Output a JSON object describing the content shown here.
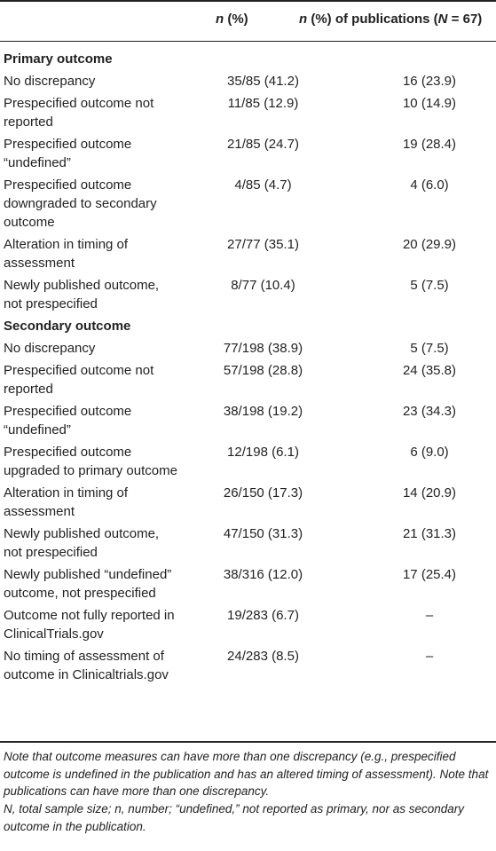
{
  "header": {
    "col1_n": "n",
    "col1_rest": " (%)",
    "col2_n": "n",
    "col2_mid": " (%) of publications (",
    "col2_N": "N",
    "col2_end": " = 67)"
  },
  "sections": [
    {
      "title": "Primary outcome",
      "rows": [
        {
          "label": "No discrepancy",
          "v1": "35/85 (41.2)",
          "v2": "16 (23.9)"
        },
        {
          "label": "Prespecified outcome not reported",
          "v1": "11/85 (12.9)",
          "v2": "10 (14.9)"
        },
        {
          "label": "Prespecified outcome “undefined”",
          "v1": "21/85 (24.7)",
          "v2": "19 (28.4)"
        },
        {
          "label": "Prespecified outcome downgraded to secondary outcome",
          "v1": "4/85 (4.7)",
          "v2": "4 (6.0)"
        },
        {
          "label": "Alteration in timing of assessment",
          "v1": "27/77 (35.1)",
          "v2": "20 (29.9)"
        },
        {
          "label": "Newly published outcome, not prespecified",
          "v1": "8/77 (10.4)",
          "v2": "5 (7.5)"
        }
      ]
    },
    {
      "title": "Secondary outcome",
      "rows": [
        {
          "label": "No discrepancy",
          "v1": "77/198 (38.9)",
          "v2": "5 (7.5)"
        },
        {
          "label": "Prespecified outcome not reported",
          "v1": "57/198 (28.8)",
          "v2": "24 (35.8)"
        },
        {
          "label": "Prespecified outcome “undefined”",
          "v1": "38/198 (19.2)",
          "v2": "23 (34.3)"
        },
        {
          "label": "Prespecified outcome upgraded to primary outcome",
          "v1": "12/198 (6.1)",
          "v2": "6 (9.0)"
        },
        {
          "label": "Alteration in timing of assessment",
          "v1": "26/150 (17.3)",
          "v2": "14 (20.9)"
        },
        {
          "label": "Newly published outcome, not prespecified",
          "v1": "47/150 (31.3)",
          "v2": "21 (31.3)"
        },
        {
          "label": "Newly published “undefined” outcome, not prespecified",
          "v1": "38/316 (12.0)",
          "v2": "17 (25.4)"
        },
        {
          "label": "Outcome not fully reported in ClinicalTrials.gov",
          "v1": "19/283 (6.7)",
          "v2": "–"
        },
        {
          "label": "No timing of assessment of outcome in Clinicaltrials.gov",
          "v1": "24/283 (8.5)",
          "v2": "–"
        }
      ]
    }
  ],
  "notes": {
    "note1": "Note that outcome measures can have more than one discrepancy (e.g., prespecified outcome is undefined in the publication and has an altered timing of assessment). Note that publications can have more than one discrepancy.",
    "note2": "N, total sample size; n, number; “undefined,” not reported as primary, nor as secondary outcome in the publication."
  }
}
